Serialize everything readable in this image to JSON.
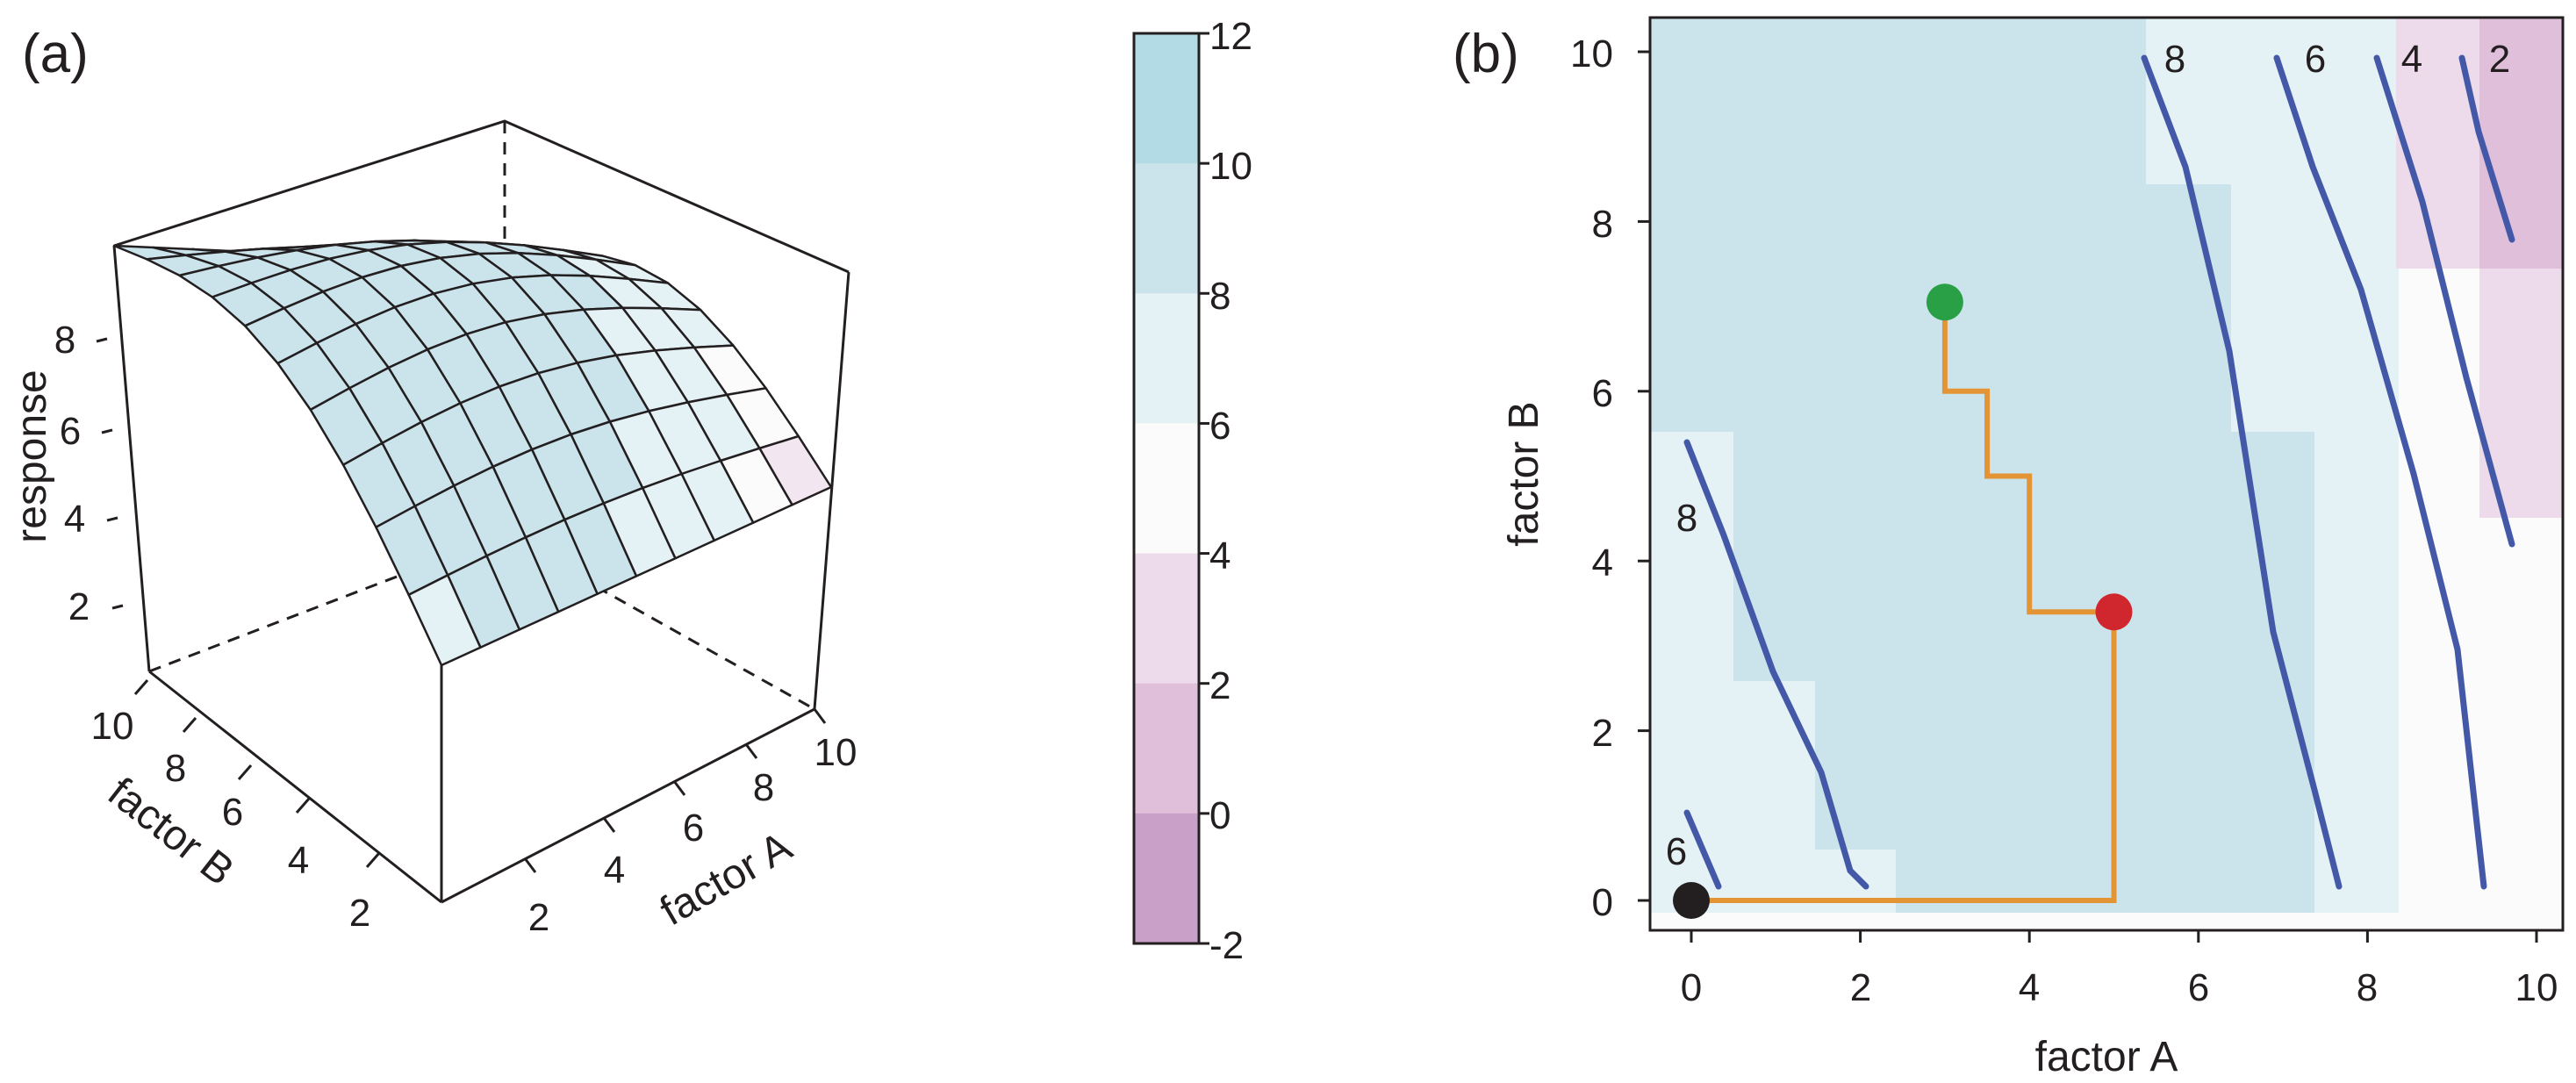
{
  "panel_a": {
    "label": "(a)",
    "zlabel": "response",
    "xlabel": "factor A",
    "ylabel": "factor B",
    "z_ticks": [
      "2",
      "4",
      "6",
      "8"
    ],
    "x_ticks": [
      "2",
      "4",
      "6",
      "8",
      "10"
    ],
    "y_ticks": [
      "2",
      "4",
      "6",
      "8",
      "10"
    ]
  },
  "colorbar": {
    "ticks": [
      "12",
      "10",
      "8",
      "6",
      "4",
      "2",
      "0",
      "-2"
    ],
    "colors": [
      "#b3dbe6",
      "#cbe4ec",
      "#e4f1f5",
      "#fbfbfb",
      "#eddaea",
      "#e0bfdb",
      "#c9a0c7"
    ]
  },
  "panel_b": {
    "label": "(b)",
    "xlabel": "factor A",
    "ylabel": "factor B",
    "x_ticks": [
      "0",
      "2",
      "4",
      "6",
      "8",
      "10"
    ],
    "y_ticks": [
      "0",
      "2",
      "4",
      "6",
      "8",
      "10"
    ],
    "contour_labels": [
      "8",
      "6",
      "4",
      "2",
      "8",
      "6"
    ]
  },
  "chart_data": [
    {
      "type": "surface",
      "xlabel": "factor A",
      "ylabel": "factor B",
      "zlabel": "response",
      "xlim": [
        0,
        10
      ],
      "ylim": [
        0,
        10
      ],
      "zlim": [
        1,
        10
      ],
      "colorbar_ticks": [
        12,
        10,
        8,
        6,
        4,
        2,
        0,
        -2
      ]
    },
    {
      "type": "heatmap",
      "xlabel": "factor A",
      "ylabel": "factor B",
      "xlim": [
        0,
        10
      ],
      "ylim": [
        0,
        10
      ],
      "contour_levels": [
        8,
        6,
        4,
        2,
        8,
        6
      ],
      "path": {
        "x": [
          0,
          5,
          5,
          4,
          4,
          3.5,
          3.5,
          3,
          3
        ],
        "y": [
          0,
          0,
          3.4,
          3.4,
          5,
          5,
          6,
          6,
          7
        ]
      },
      "markers": [
        {
          "x": 0,
          "y": 0,
          "color": "#231f20"
        },
        {
          "x": 5,
          "y": 3.4,
          "color": "#d0262e"
        },
        {
          "x": 3,
          "y": 7.05,
          "color": "#29a046"
        }
      ]
    }
  ]
}
